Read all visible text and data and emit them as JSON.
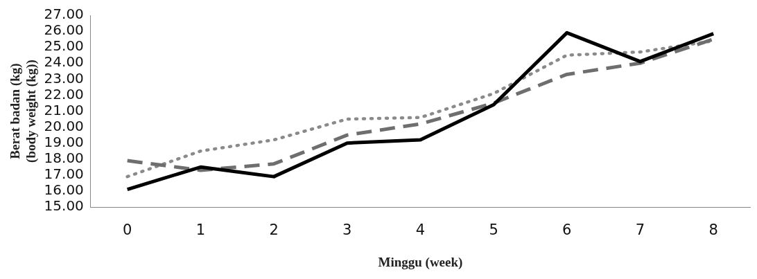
{
  "chart_data": {
    "type": "line",
    "xlabel": "Minggu (week)",
    "ylabel": "Berat badan (kg)\n(body weight (kg))",
    "categories": [
      "0",
      "1",
      "2",
      "3",
      "4",
      "5",
      "6",
      "7",
      "8"
    ],
    "ylim": [
      15,
      27
    ],
    "yticks": [
      {
        "value": 15,
        "label": "15.00"
      },
      {
        "value": 16,
        "label": "16.00"
      },
      {
        "value": 17,
        "label": "17.00"
      },
      {
        "value": 18,
        "label": "18.00"
      },
      {
        "value": 19,
        "label": "19.00"
      },
      {
        "value": 20,
        "label": "20.00"
      },
      {
        "value": 21,
        "label": "21.00"
      },
      {
        "value": 22,
        "label": "22.00"
      },
      {
        "value": 23,
        "label": "23.00"
      },
      {
        "value": 24,
        "label": "24.00"
      },
      {
        "value": 25,
        "label": "25.00"
      },
      {
        "value": 26,
        "label": "26.00"
      },
      {
        "value": 27,
        "label": "27.00"
      }
    ],
    "grid": false,
    "legend": false,
    "marker": "none",
    "series": [
      {
        "color": "#000000",
        "line_style": "solid",
        "values": [
          16.1,
          17.5,
          16.9,
          19.0,
          19.2,
          21.4,
          25.9,
          24.1,
          25.85
        ]
      },
      {
        "color": "#6e6e6e",
        "line_style": "dashed",
        "values": [
          17.9,
          17.3,
          17.7,
          19.5,
          20.2,
          21.5,
          23.3,
          24.0,
          25.5
        ]
      },
      {
        "color": "#8a8a8a",
        "line_style": "dotted",
        "values": [
          16.9,
          18.5,
          19.2,
          20.5,
          20.6,
          22.1,
          24.5,
          24.7,
          25.4
        ]
      }
    ]
  }
}
